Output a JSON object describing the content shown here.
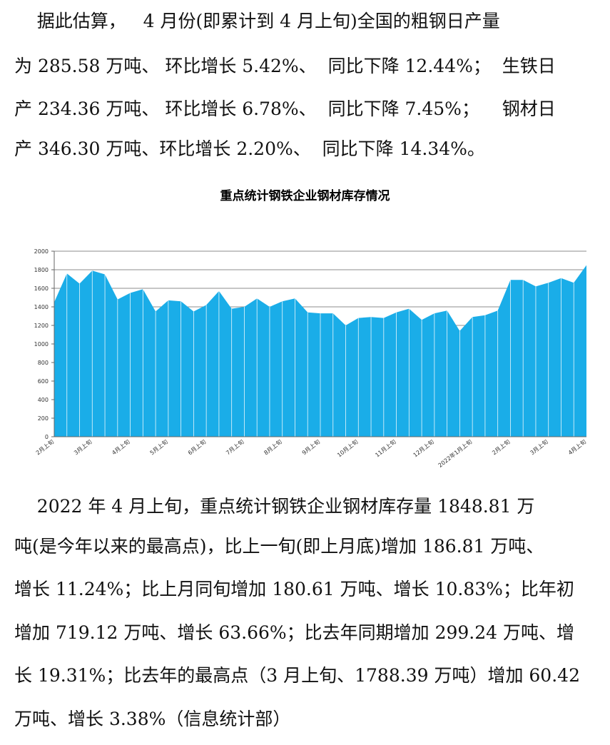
{
  "paragraph1": {
    "lines": [
      "    据此估算，   4 月份(即累计到 4 月上旬)全国的粗钢日产量",
      "为 285.58 万吨、 环比增长 5.42%、  同比下降 12.44%；  生铁日",
      "产 234.36 万吨、 环比增长 6.78%、  同比下降 7.45%；    钢材日",
      "产 346.30 万吨、环比增长 2.20%、  同比下降 14.34%。"
    ]
  },
  "chart_data": {
    "type": "area",
    "title": "重点统计钢铁企业钢材库存情况",
    "color": "#1AADE8",
    "ylim": [
      0,
      2000
    ],
    "yticks": [
      0,
      200,
      400,
      600,
      800,
      1000,
      1200,
      1400,
      1600,
      1800,
      2000
    ],
    "grid": true,
    "x_tick_labels": [
      "2月上旬",
      "3月上旬",
      "4月上旬",
      "5月上旬",
      "6月上旬",
      "7月上旬",
      "8月上旬",
      "9月上旬",
      "10月上旬",
      "11月上旬",
      "12月上旬",
      "2022年1月上旬",
      "2月上旬",
      "3月上旬",
      "4月上旬"
    ],
    "x_tick_positions": [
      0,
      3,
      6,
      9,
      12,
      15,
      18,
      21,
      24,
      27,
      30,
      33,
      36,
      39,
      42
    ],
    "values": [
      1450,
      1760,
      1650,
      1790,
      1750,
      1480,
      1550,
      1590,
      1350,
      1470,
      1460,
      1350,
      1420,
      1570,
      1380,
      1400,
      1490,
      1400,
      1460,
      1490,
      1340,
      1330,
      1330,
      1200,
      1280,
      1290,
      1280,
      1340,
      1380,
      1260,
      1330,
      1360,
      1140,
      1290,
      1310,
      1360,
      1690,
      1690,
      1620,
      1660,
      1710,
      1660,
      1849
    ]
  },
  "paragraph2": {
    "lines": [
      "    2022 年 4 月上旬，重点统计钢铁企业钢材库存量 1848.81 万",
      "吨(是今年以来的最高点)，比上一旬(即上月底)增加 186.81 万吨、",
      "增长 11.24%；比上月同旬增加 180.61 万吨、增长 10.83%；比年初",
      "增加 719.12 万吨、增长 63.66%；比去年同期增加 299.24 万吨、增",
      "长 19.31%；比去年的最高点（3 月上旬、1788.39 万吨）增加 60.42",
      "万吨、增长 3.38%（信息统计部）"
    ]
  }
}
